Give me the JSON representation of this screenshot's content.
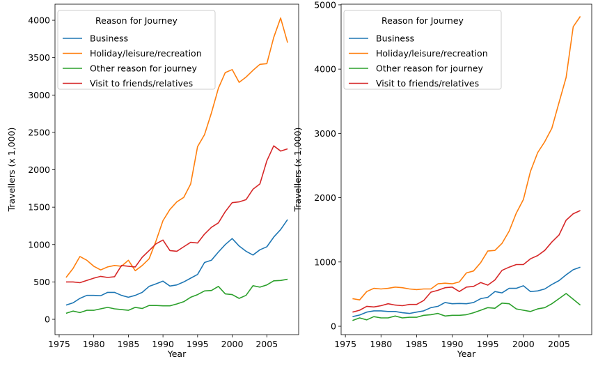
{
  "chart_data": [
    {
      "type": "line",
      "xlabel": "Year",
      "ylabel": "Travellers (x 1,000)",
      "xlim": [
        1974.4,
        2009.6
      ],
      "ylim": [
        -205,
        4215
      ],
      "xticks": [
        1975,
        1980,
        1985,
        1990,
        1995,
        2000,
        2005
      ],
      "yticks": [
        0,
        500,
        1000,
        1500,
        2000,
        2500,
        3000,
        3500,
        4000
      ],
      "grid": false,
      "legend": {
        "title": "Reason for Journey",
        "placement": "top-left"
      },
      "x": [
        1976,
        1977,
        1978,
        1979,
        1980,
        1981,
        1982,
        1983,
        1984,
        1985,
        1986,
        1987,
        1988,
        1989,
        1990,
        1991,
        1992,
        1993,
        1994,
        1995,
        1996,
        1997,
        1998,
        1999,
        2000,
        2001,
        2002,
        2003,
        2004,
        2005,
        2006,
        2007,
        2008
      ],
      "series": [
        {
          "name": "Business",
          "color": "#1f77b4",
          "values": [
            190,
            220,
            280,
            320,
            320,
            315,
            360,
            360,
            320,
            295,
            320,
            360,
            440,
            475,
            510,
            445,
            460,
            500,
            550,
            600,
            760,
            790,
            900,
            1000,
            1080,
            980,
            910,
            860,
            930,
            970,
            1100,
            1200,
            1335
          ]
        },
        {
          "name": "Holiday/leisure/recreation",
          "color": "#ff7f0e",
          "values": [
            560,
            680,
            840,
            790,
            710,
            660,
            700,
            720,
            710,
            790,
            650,
            720,
            810,
            1050,
            1320,
            1470,
            1570,
            1630,
            1810,
            2310,
            2470,
            2760,
            3090,
            3300,
            3340,
            3170,
            3240,
            3330,
            3410,
            3420,
            3770,
            4030,
            3700
          ]
        },
        {
          "name": "Other reason for journey",
          "color": "#2ca02c",
          "values": [
            80,
            110,
            90,
            120,
            120,
            140,
            160,
            140,
            130,
            120,
            160,
            145,
            185,
            185,
            180,
            180,
            205,
            235,
            295,
            330,
            380,
            385,
            440,
            340,
            330,
            280,
            320,
            450,
            430,
            460,
            515,
            520,
            535
          ]
        },
        {
          "name": "Visit to friends/relatives",
          "color": "#d62728",
          "values": [
            500,
            500,
            490,
            520,
            550,
            575,
            560,
            570,
            720,
            710,
            700,
            830,
            920,
            1010,
            1060,
            920,
            910,
            970,
            1030,
            1020,
            1140,
            1230,
            1290,
            1440,
            1560,
            1570,
            1600,
            1740,
            1810,
            2120,
            2320,
            2250,
            2280
          ]
        }
      ]
    },
    {
      "type": "line",
      "xlabel": "Year",
      "ylabel": "Travellers (x 1,000)",
      "xlim": [
        1974.4,
        2009.6
      ],
      "ylim": [
        -130,
        5010
      ],
      "xticks": [
        1975,
        1980,
        1985,
        1990,
        1995,
        2000,
        2005
      ],
      "yticks": [
        0,
        1000,
        2000,
        3000,
        4000,
        5000
      ],
      "grid": false,
      "legend": {
        "title": "Reason for Journey",
        "placement": "top-left"
      },
      "x": [
        1976,
        1977,
        1978,
        1979,
        1980,
        1981,
        1982,
        1983,
        1984,
        1985,
        1986,
        1987,
        1988,
        1989,
        1990,
        1991,
        1992,
        1993,
        1994,
        1995,
        1996,
        1997,
        1998,
        1999,
        2000,
        2001,
        2002,
        2003,
        2004,
        2005,
        2006,
        2007,
        2008
      ],
      "series": [
        {
          "name": "Business",
          "color": "#1f77b4",
          "values": [
            150,
            175,
            220,
            240,
            240,
            230,
            230,
            210,
            200,
            220,
            240,
            290,
            310,
            370,
            350,
            355,
            350,
            370,
            430,
            450,
            540,
            520,
            590,
            590,
            630,
            540,
            550,
            580,
            650,
            710,
            800,
            880,
            920
          ]
        },
        {
          "name": "Holiday/leisure/recreation",
          "color": "#ff7f0e",
          "values": [
            430,
            410,
            540,
            590,
            580,
            590,
            610,
            600,
            580,
            570,
            580,
            580,
            660,
            670,
            660,
            690,
            830,
            860,
            990,
            1170,
            1180,
            1290,
            1480,
            1760,
            1970,
            2410,
            2700,
            2870,
            3080,
            3480,
            3870,
            4660,
            4820
          ]
        },
        {
          "name": "Other reason for journey",
          "color": "#2ca02c",
          "values": [
            90,
            130,
            100,
            150,
            130,
            130,
            160,
            130,
            140,
            140,
            170,
            180,
            200,
            160,
            170,
            170,
            180,
            210,
            250,
            290,
            280,
            360,
            350,
            270,
            250,
            230,
            270,
            290,
            350,
            430,
            510,
            420,
            330
          ]
        },
        {
          "name": "Visit to friends/relatives",
          "color": "#d62728",
          "values": [
            220,
            250,
            310,
            300,
            320,
            350,
            330,
            320,
            340,
            340,
            400,
            530,
            560,
            600,
            610,
            540,
            610,
            620,
            680,
            640,
            720,
            870,
            920,
            960,
            960,
            1050,
            1100,
            1180,
            1310,
            1420,
            1650,
            1750,
            1800
          ]
        }
      ]
    }
  ]
}
